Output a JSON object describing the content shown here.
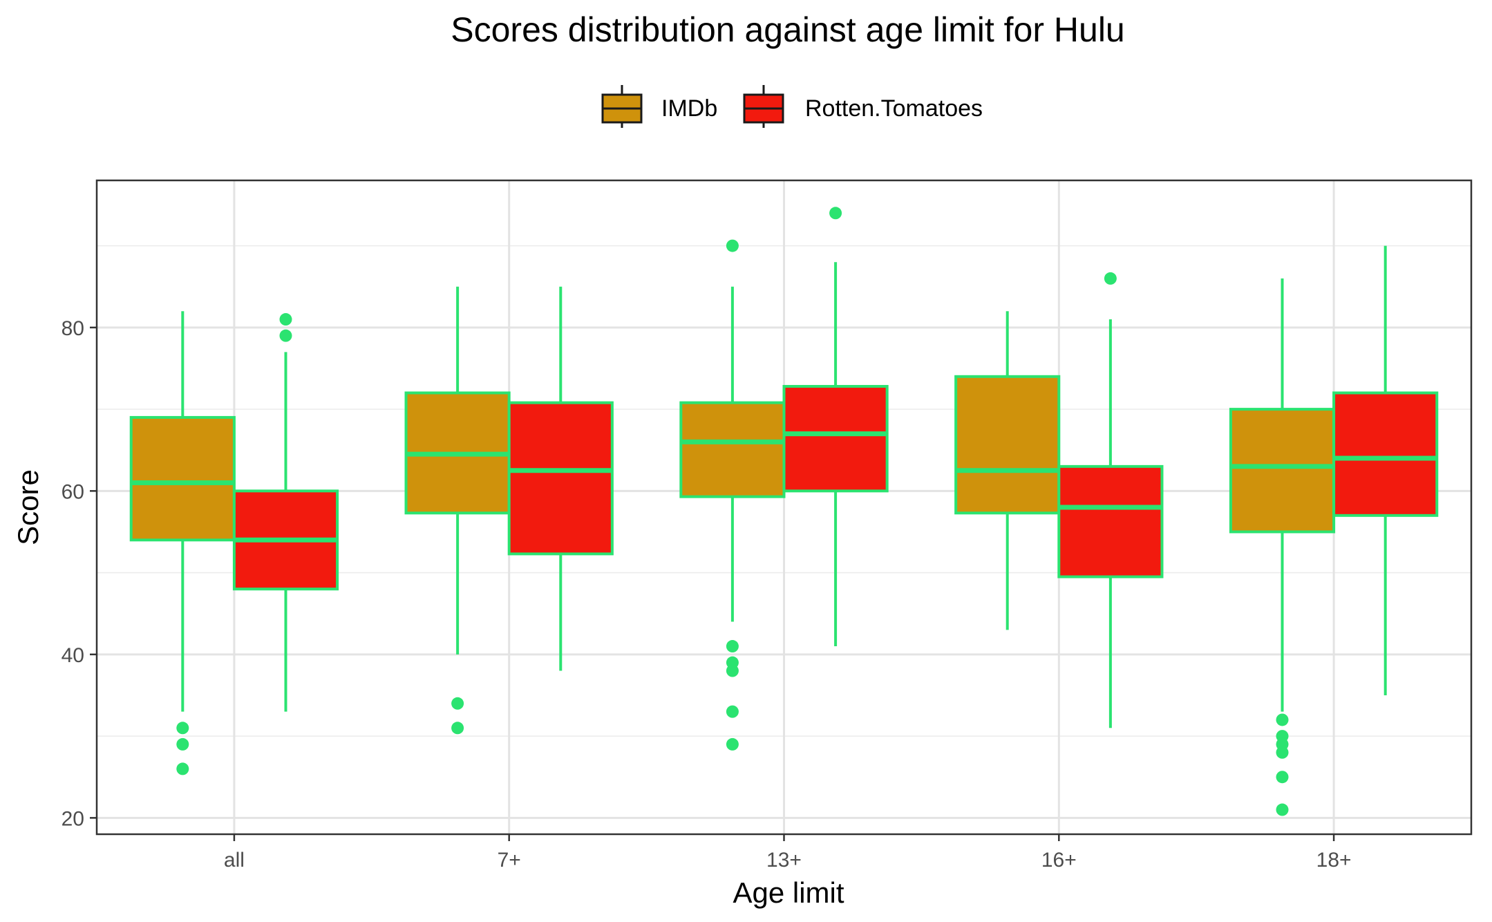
{
  "chart_data": {
    "type": "boxplot",
    "title": "Scores distribution against age limit for Hulu",
    "xlabel": "Age limit",
    "ylabel": "Score",
    "categories": [
      "all",
      "7+",
      "13+",
      "16+",
      "18+"
    ],
    "ylim": [
      18,
      98
    ],
    "yticks": [
      20,
      40,
      60,
      80
    ],
    "grid": true,
    "legend_position": "top",
    "outline_color": "#2be370",
    "series": [
      {
        "name": "IMDb",
        "color": "#cf920c",
        "boxes": [
          {
            "lower_whisker": 33,
            "q1": 54,
            "median": 61,
            "q3": 69,
            "upper_whisker": 82,
            "outliers": [
              31,
              29,
              26
            ]
          },
          {
            "lower_whisker": 40,
            "q1": 57.3,
            "median": 64.5,
            "q3": 72,
            "upper_whisker": 85,
            "outliers": [
              34,
              31
            ]
          },
          {
            "lower_whisker": 44,
            "q1": 59.3,
            "median": 66,
            "q3": 70.8,
            "upper_whisker": 85,
            "outliers": [
              90,
              41,
              39,
              38,
              33,
              29
            ]
          },
          {
            "lower_whisker": 43,
            "q1": 57.3,
            "median": 62.5,
            "q3": 74,
            "upper_whisker": 82,
            "outliers": []
          },
          {
            "lower_whisker": 33,
            "q1": 55,
            "median": 63,
            "q3": 70,
            "upper_whisker": 86,
            "outliers": [
              32,
              30,
              29,
              28,
              25,
              21
            ]
          }
        ]
      },
      {
        "name": "Rotten.Tomatoes",
        "color": "#f21a0e",
        "boxes": [
          {
            "lower_whisker": 33,
            "q1": 48,
            "median": 54,
            "q3": 60,
            "upper_whisker": 77,
            "outliers": [
              81,
              79
            ]
          },
          {
            "lower_whisker": 38,
            "q1": 52.3,
            "median": 62.5,
            "q3": 70.8,
            "upper_whisker": 85,
            "outliers": []
          },
          {
            "lower_whisker": 41,
            "q1": 60,
            "median": 67,
            "q3": 72.8,
            "upper_whisker": 88,
            "outliers": [
              94
            ]
          },
          {
            "lower_whisker": 31,
            "q1": 49.5,
            "median": 58,
            "q3": 63,
            "upper_whisker": 81,
            "outliers": [
              86
            ]
          },
          {
            "lower_whisker": 35,
            "q1": 57,
            "median": 64,
            "q3": 72,
            "upper_whisker": 90,
            "outliers": []
          }
        ]
      }
    ]
  }
}
